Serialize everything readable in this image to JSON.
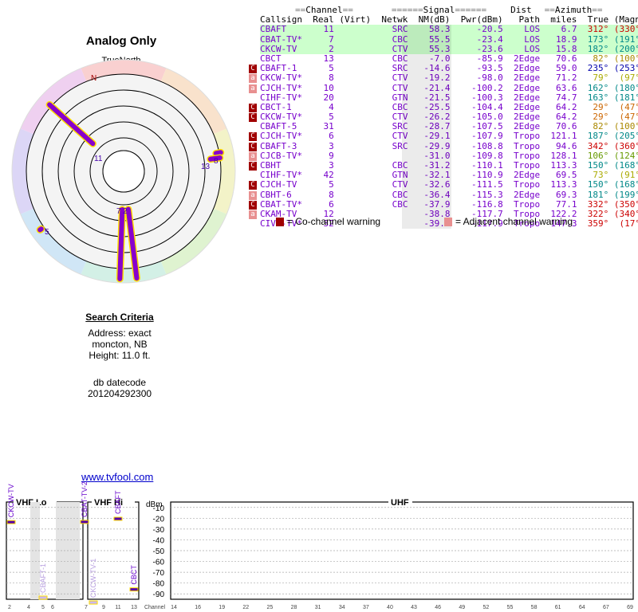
{
  "page": {
    "title": "Analog Only",
    "true_north_label": "TrueNorth",
    "north_marker": "N",
    "search_heading": "Search Criteria",
    "address_line": "Address: exact",
    "location_line": "moncton, NB",
    "height_line": "Height: 11.0 ft.",
    "db_label": "db datecode",
    "db_value": "201204292300",
    "site_link": "www.tvfool.com"
  },
  "table": {
    "header_top": "==Channel== =======Signal====== Dist ==Azimuth==",
    "columns": [
      "Callsign",
      "Real",
      "(Virt)",
      "Netwk",
      "NM(dB)",
      "Pwr(dBm)",
      "Path",
      "miles",
      "True",
      "(Magn)"
    ],
    "rows": [
      {
        "callsign": "CBAFT",
        "real": "11",
        "netwk": "SRC",
        "nm": "58.3",
        "pwr": "-20.5",
        "path": "LOS",
        "miles": "6.7",
        "true_az": "312°",
        "magn": "(330°)",
        "warn": "",
        "color": "#7700cc",
        "azcolor": "#cc0000",
        "bg": "#ccffcc"
      },
      {
        "callsign": "CBAT-TV*",
        "real": "7",
        "netwk": "CBC",
        "nm": "55.5",
        "pwr": "-23.4",
        "path": "LOS",
        "miles": "18.9",
        "true_az": "173°",
        "magn": "(191°)",
        "warn": "",
        "color": "#7700cc",
        "azcolor": "#008888",
        "bg": "#ccffcc"
      },
      {
        "callsign": "CKCW-TV",
        "real": "2",
        "netwk": "CTV",
        "nm": "55.3",
        "pwr": "-23.6",
        "path": "LOS",
        "miles": "15.8",
        "true_az": "182°",
        "magn": "(200°)",
        "warn": "",
        "color": "#7700cc",
        "azcolor": "#008888",
        "bg": "#ccffcc"
      },
      {
        "callsign": "CBCT",
        "real": "13",
        "netwk": "CBC",
        "nm": "-7.0",
        "pwr": "-85.9",
        "path": "2Edge",
        "miles": "70.6",
        "true_az": "82°",
        "magn": "(100°)",
        "warn": "",
        "color": "#7700cc",
        "azcolor": "#aa8800",
        "bg": "#ffffff"
      },
      {
        "callsign": "CBAFT-1",
        "real": "5",
        "netwk": "SRC",
        "nm": "-14.6",
        "pwr": "-93.5",
        "path": "2Edge",
        "miles": "59.0",
        "true_az": "235°",
        "magn": "(253°)",
        "warn": "cc",
        "color": "#7700cc",
        "azcolor": "#0000aa",
        "bg": "#ffffff"
      },
      {
        "callsign": "CKCW-TV*",
        "real": "8",
        "netwk": "CTV",
        "nm": "-19.2",
        "pwr": "-98.0",
        "path": "2Edge",
        "miles": "71.2",
        "true_az": "79°",
        "magn": "(97°)",
        "warn": "ac",
        "color": "#7700cc",
        "azcolor": "#aaaa00",
        "bg": "#ffffff"
      },
      {
        "callsign": "CJCH-TV*",
        "real": "10",
        "netwk": "CTV",
        "nm": "-21.4",
        "pwr": "-100.2",
        "path": "2Edge",
        "miles": "63.6",
        "true_az": "162°",
        "magn": "(180°)",
        "warn": "ac",
        "color": "#7700cc",
        "azcolor": "#008888",
        "bg": "#ffffff"
      },
      {
        "callsign": "CIHF-TV*",
        "real": "20",
        "netwk": "GTN",
        "nm": "-21.5",
        "pwr": "-100.3",
        "path": "2Edge",
        "miles": "74.7",
        "true_az": "163°",
        "magn": "(181°)",
        "warn": "",
        "color": "#7700cc",
        "azcolor": "#008888",
        "bg": "#ffffff"
      },
      {
        "callsign": "CBCT-1",
        "real": "4",
        "netwk": "CBC",
        "nm": "-25.5",
        "pwr": "-104.4",
        "path": "2Edge",
        "miles": "64.2",
        "true_az": "29°",
        "magn": "(47°)",
        "warn": "cc",
        "color": "#7700cc",
        "azcolor": "#cc6600",
        "bg": "#ffffff"
      },
      {
        "callsign": "CKCW-TV*",
        "real": "5",
        "netwk": "CTV",
        "nm": "-26.2",
        "pwr": "-105.0",
        "path": "2Edge",
        "miles": "64.2",
        "true_az": "29°",
        "magn": "(47°)",
        "warn": "cc",
        "color": "#7700cc",
        "azcolor": "#cc6600",
        "bg": "#ffffff"
      },
      {
        "callsign": "CBAFT-5",
        "real": "31",
        "netwk": "SRC",
        "nm": "-28.7",
        "pwr": "-107.5",
        "path": "2Edge",
        "miles": "70.6",
        "true_az": "82°",
        "magn": "(100°)",
        "warn": "",
        "color": "#7700cc",
        "azcolor": "#aa8800",
        "bg": "#ffffff"
      },
      {
        "callsign": "CJCH-TV*",
        "real": "6",
        "netwk": "CTV",
        "nm": "-29.1",
        "pwr": "-107.9",
        "path": "Tropo",
        "miles": "121.1",
        "true_az": "187°",
        "magn": "(205°)",
        "warn": "cc",
        "color": "#7700cc",
        "azcolor": "#008888",
        "bg": "#ffffff"
      },
      {
        "callsign": "CBAFT-3",
        "real": "3",
        "netwk": "SRC",
        "nm": "-29.9",
        "pwr": "-108.8",
        "path": "Tropo",
        "miles": "94.6",
        "true_az": "342°",
        "magn": "(360°)",
        "warn": "cc",
        "color": "#7700cc",
        "azcolor": "#cc0000",
        "bg": "#ffffff"
      },
      {
        "callsign": "CJCB-TV*",
        "real": "9",
        "netwk": "",
        "nm": "-31.0",
        "pwr": "-109.8",
        "path": "Tropo",
        "miles": "128.1",
        "true_az": "106°",
        "magn": "(124°)",
        "warn": "ac",
        "color": "#7700cc",
        "azcolor": "#669900",
        "bg": "#ffffff"
      },
      {
        "callsign": "CBHT",
        "real": "3",
        "netwk": "CBC",
        "nm": "-31.2",
        "pwr": "-110.1",
        "path": "Tropo",
        "miles": "113.3",
        "true_az": "150°",
        "magn": "(168°)",
        "warn": "cc",
        "color": "#7700cc",
        "azcolor": "#008888",
        "bg": "#ffffff"
      },
      {
        "callsign": "CIHF-TV*",
        "real": "42",
        "netwk": "GTN",
        "nm": "-32.1",
        "pwr": "-110.9",
        "path": "2Edge",
        "miles": "69.5",
        "true_az": "73°",
        "magn": "(91°)",
        "warn": "",
        "color": "#7700cc",
        "azcolor": "#aaaa00",
        "bg": "#ffffff"
      },
      {
        "callsign": "CJCH-TV",
        "real": "5",
        "netwk": "CTV",
        "nm": "-32.6",
        "pwr": "-111.5",
        "path": "Tropo",
        "miles": "113.3",
        "true_az": "150°",
        "magn": "(168°)",
        "warn": "cc",
        "color": "#7700cc",
        "azcolor": "#008888",
        "bg": "#ffffff"
      },
      {
        "callsign": "CBHT-6",
        "real": "8",
        "netwk": "CBC",
        "nm": "-36.4",
        "pwr": "-115.3",
        "path": "2Edge",
        "miles": "69.3",
        "true_az": "181°",
        "magn": "(199°)",
        "warn": "ac",
        "color": "#7700cc",
        "azcolor": "#008888",
        "bg": "#ffffff"
      },
      {
        "callsign": "CBAT-TV*",
        "real": "6",
        "netwk": "CBC",
        "nm": "-37.9",
        "pwr": "-116.8",
        "path": "Tropo",
        "miles": "77.1",
        "true_az": "332°",
        "magn": "(350°)",
        "warn": "cc",
        "color": "#7700cc",
        "azcolor": "#cc0000",
        "bg": "#ffffff"
      },
      {
        "callsign": "CKAM-TV",
        "real": "12",
        "netwk": "",
        "nm": "-38.8",
        "pwr": "-117.7",
        "path": "Tropo",
        "miles": "122.2",
        "true_az": "322°",
        "magn": "(340°)",
        "warn": "ac",
        "color": "#7700cc",
        "azcolor": "#cc0000",
        "bg": "#ffffff"
      },
      {
        "callsign": "CIVK-TV*",
        "real": "32",
        "netwk": "",
        "nm": "-39.1",
        "pwr": "-117.9",
        "path": "Tropo",
        "miles": "147.3",
        "true_az": "359°",
        "magn": "(17°)",
        "warn": "",
        "color": "#7700cc",
        "azcolor": "#cc0000",
        "bg": "#ffffff"
      }
    ],
    "legend_cc_text": "= Co-channel warning",
    "legend_ac_text": "= Adjacent channel warning"
  },
  "chart_data": [
    {
      "type": "polar",
      "rings": 6,
      "markers": [
        {
          "label": "11",
          "azimuth": 312,
          "rank": 1
        },
        {
          "label": "8",
          "azimuth": 79,
          "rank": 5
        },
        {
          "label": "13",
          "azimuth": 82,
          "rank": 5
        },
        {
          "label": "2",
          "azimuth": 182,
          "rank": 1
        },
        {
          "label": "7",
          "azimuth": 173,
          "rank": 1
        },
        {
          "label": "5",
          "azimuth": 235,
          "rank": 5
        }
      ],
      "colors": {
        "line": "#8800cc",
        "outline": "#ffdd00"
      }
    },
    {
      "type": "bar",
      "ylabel": "dBm",
      "yticks": [
        "-10",
        "-20",
        "-30",
        "-40",
        "-50",
        "-60",
        "-70",
        "-80",
        "-90"
      ],
      "ylim": [
        -95,
        -5
      ],
      "band_labels": [
        "VHF Lo",
        "VHF Hi",
        "UHF"
      ],
      "x_label": "Channel",
      "vhf_lo_ticks": [
        "2",
        "4",
        "5",
        "6"
      ],
      "vhf_hi_ticks": [
        "7",
        "9",
        "11",
        "13"
      ],
      "uhf_ticks": [
        "14",
        "16",
        "19",
        "22",
        "25",
        "28",
        "31",
        "34",
        "37",
        "40",
        "43",
        "46",
        "49",
        "52",
        "55",
        "58",
        "61",
        "64",
        "67",
        "69"
      ],
      "stations": [
        {
          "label": "CKCW-TV",
          "channel": "2",
          "dbm": -23.6,
          "style": "strong"
        },
        {
          "label": "CBAFT-1",
          "channel": "5",
          "dbm": -93.5,
          "style": "weak"
        },
        {
          "label": "CBAT-TV-2",
          "channel": "7",
          "dbm": -23.4,
          "style": "strong"
        },
        {
          "label": "CKCW-TV-1",
          "channel": "8",
          "dbm": -98.0,
          "style": "weak"
        },
        {
          "label": "CBAFT",
          "channel": "11",
          "dbm": -20.5,
          "style": "strong"
        },
        {
          "label": "CBCT",
          "channel": "13",
          "dbm": -85.9,
          "style": "strong"
        }
      ]
    }
  ]
}
